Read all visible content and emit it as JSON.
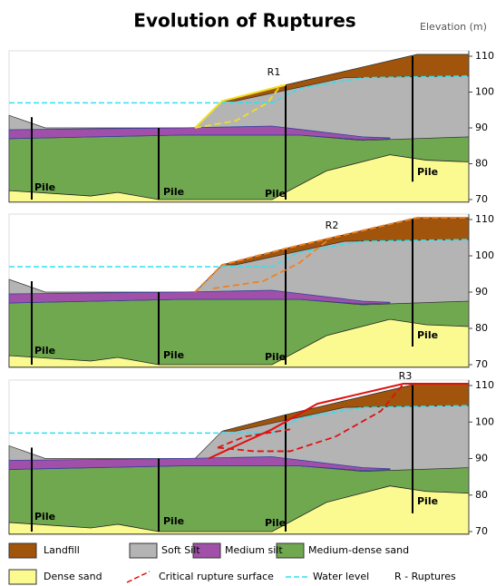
{
  "title": "Evolution of Ruptures",
  "axis_label": "Elevation (m)",
  "panels": [
    {
      "label": "R1",
      "ticks": [
        110,
        100,
        90,
        80,
        70
      ],
      "piles": [
        "Pile",
        "Pile",
        "Pile",
        "Pile"
      ]
    },
    {
      "label": "R2",
      "ticks": [
        110,
        100,
        90,
        80,
        70
      ],
      "piles": [
        "Pile",
        "Pile",
        "Pile",
        "Pile"
      ]
    },
    {
      "label": "R3",
      "ticks": [
        110,
        100,
        90,
        80,
        70
      ],
      "piles": [
        "Pile",
        "Pile",
        "Pile",
        "Pile"
      ]
    }
  ],
  "legend": [
    "Landfill",
    "Soft Silt",
    "Medium silt",
    "Medium-dense sand",
    "Dense sand",
    "Critical rupture surface",
    "Water level",
    "R - Ruptures"
  ]
}
